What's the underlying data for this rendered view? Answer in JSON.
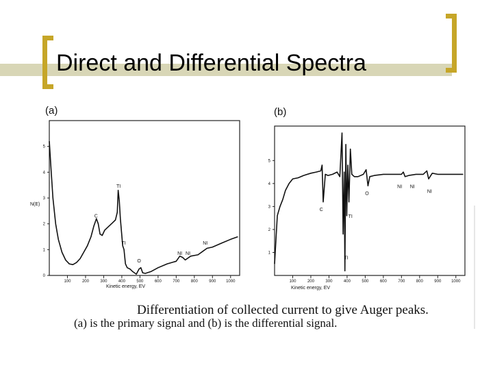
{
  "slide": {
    "title": "Direct and Differential Spectra",
    "accent_color": "#c6a628",
    "bar_color": "#d8d6b6"
  },
  "caption": {
    "line1": "Differentiation of collected current to give Auger peaks.",
    "line2": "(a) is the primary signal and (b) is the differential signal."
  },
  "chart_data": [
    {
      "type": "line",
      "panel_label": "(a)",
      "ylabel": "N(E)",
      "xlabel": "Kinetic energy, EV",
      "xlim": [
        0,
        1050
      ],
      "ylim": [
        0,
        6
      ],
      "x_ticks": [
        "100",
        "200",
        "300",
        "400",
        "500",
        "600",
        "700",
        "800",
        "900",
        "1000"
      ],
      "y_ticks": [
        "0",
        "1",
        "2",
        "3",
        "4",
        "5"
      ],
      "series": [
        {
          "x": [
            0,
            10,
            20,
            35,
            50,
            70,
            90,
            110,
            130,
            150,
            170,
            190,
            210,
            230,
            245,
            260,
            270,
            280,
            292,
            305,
            320,
            335,
            350,
            365,
            375,
            380,
            386,
            392,
            398,
            405,
            412,
            420,
            430,
            445,
            460,
            480,
            495,
            505,
            515,
            530,
            560,
            600,
            650,
            700,
            720,
            735,
            750,
            780,
            820,
            850,
            870,
            900,
            950,
            1000,
            1040
          ],
          "y": [
            5.2,
            4.1,
            3.0,
            2.0,
            1.4,
            0.9,
            0.6,
            0.45,
            0.42,
            0.5,
            0.65,
            0.9,
            1.15,
            1.5,
            1.9,
            2.2,
            2.0,
            1.6,
            1.55,
            1.75,
            1.85,
            1.95,
            2.05,
            2.15,
            2.45,
            3.3,
            2.9,
            2.2,
            1.7,
            1.15,
            1.0,
            0.45,
            0.3,
            0.25,
            0.15,
            0.05,
            0.25,
            0.3,
            0.1,
            0.08,
            0.15,
            0.3,
            0.45,
            0.55,
            0.75,
            0.7,
            0.6,
            0.75,
            0.8,
            0.95,
            1.05,
            1.1,
            1.25,
            1.4,
            1.5
          ]
        }
      ],
      "annotations": [
        {
          "text": "C",
          "x": 258,
          "y": 2.25
        },
        {
          "text": "TI",
          "x": 382,
          "y": 3.4
        },
        {
          "text": "TI",
          "x": 410,
          "y": 1.2
        },
        {
          "text": "O",
          "x": 495,
          "y": 0.5
        },
        {
          "text": "NI",
          "x": 720,
          "y": 0.8
        },
        {
          "text": "NI",
          "x": 765,
          "y": 0.8
        },
        {
          "text": "NI",
          "x": 860,
          "y": 1.2
        }
      ]
    },
    {
      "type": "line",
      "panel_label": "(b)",
      "ylabel": "",
      "xlabel": "Kinetic energy, EV",
      "xlim": [
        0,
        1050
      ],
      "ylim": [
        0,
        6.5
      ],
      "x_ticks": [
        "100",
        "200",
        "300",
        "400",
        "500",
        "600",
        "700",
        "800",
        "900",
        "1000"
      ],
      "y_ticks": [
        "1",
        "2",
        "3",
        "4",
        "5"
      ],
      "series": [
        {
          "x": [
            0,
            15,
            30,
            45,
            60,
            80,
            100,
            130,
            160,
            200,
            230,
            255,
            262,
            268,
            273,
            280,
            295,
            320,
            345,
            360,
            372,
            378,
            384,
            388,
            393,
            398,
            404,
            410,
            418,
            426,
            440,
            460,
            490,
            505,
            515,
            525,
            550,
            600,
            650,
            700,
            710,
            720,
            740,
            780,
            820,
            840,
            850,
            870,
            900,
            950,
            1000,
            1040
          ],
          "y": [
            0.5,
            2.6,
            3.0,
            3.3,
            3.7,
            4.0,
            4.2,
            4.25,
            4.35,
            4.45,
            4.5,
            4.55,
            4.8,
            3.2,
            3.7,
            4.4,
            4.35,
            4.4,
            4.5,
            4.3,
            6.2,
            1.8,
            4.5,
            0.2,
            5.7,
            2.6,
            4.8,
            3.2,
            5.5,
            4.4,
            4.3,
            4.3,
            4.4,
            4.6,
            3.9,
            4.3,
            4.35,
            4.4,
            4.4,
            4.4,
            4.5,
            4.3,
            4.35,
            4.4,
            4.4,
            4.55,
            4.2,
            4.45,
            4.4,
            4.4,
            4.4,
            4.4
          ]
        }
      ],
      "annotations": [
        {
          "text": "C",
          "x": 258,
          "y": 2.8
        },
        {
          "text": "TI",
          "x": 418,
          "y": 2.5
        },
        {
          "text": "TI",
          "x": 395,
          "y": 0.7
        },
        {
          "text": "O",
          "x": 510,
          "y": 3.5
        },
        {
          "text": "NI",
          "x": 690,
          "y": 3.8
        },
        {
          "text": "NI",
          "x": 760,
          "y": 3.8
        },
        {
          "text": "NI",
          "x": 855,
          "y": 3.6
        }
      ]
    }
  ]
}
